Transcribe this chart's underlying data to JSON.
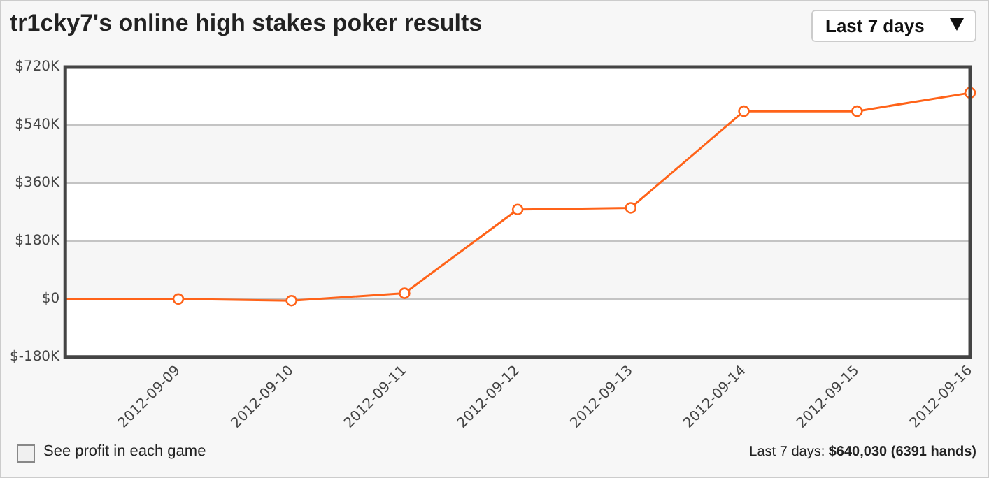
{
  "chart_data": {
    "type": "line",
    "title": "tr1cky7's online high stakes poker results",
    "categories": [
      null,
      "2012-09-09",
      "2012-09-10",
      "2012-09-11",
      "2012-09-12",
      "2012-09-13",
      "2012-09-14",
      "2012-09-15",
      "2012-09-16"
    ],
    "series": [
      {
        "color": "#ff6319",
        "values": [
          0,
          0,
          -5000,
          18000,
          278000,
          283000,
          583000,
          583000,
          640030
        ]
      }
    ],
    "ylim": [
      -180000,
      720000
    ],
    "yticks": [
      {
        "value": -180000,
        "label": "$-180K"
      },
      {
        "value": 0,
        "label": "$0"
      },
      {
        "value": 180000,
        "label": "$180K"
      },
      {
        "value": 360000,
        "label": "$360K"
      },
      {
        "value": 540000,
        "label": "$540K"
      },
      {
        "value": 720000,
        "label": "$720K"
      }
    ],
    "grid": "y",
    "legend": false,
    "marker": "circle",
    "line_style": "solid",
    "annotations": [
      "Last 7 days",
      "See profit in each game",
      "Last 7 days: $640,030 (6391 hands)"
    ]
  }
}
